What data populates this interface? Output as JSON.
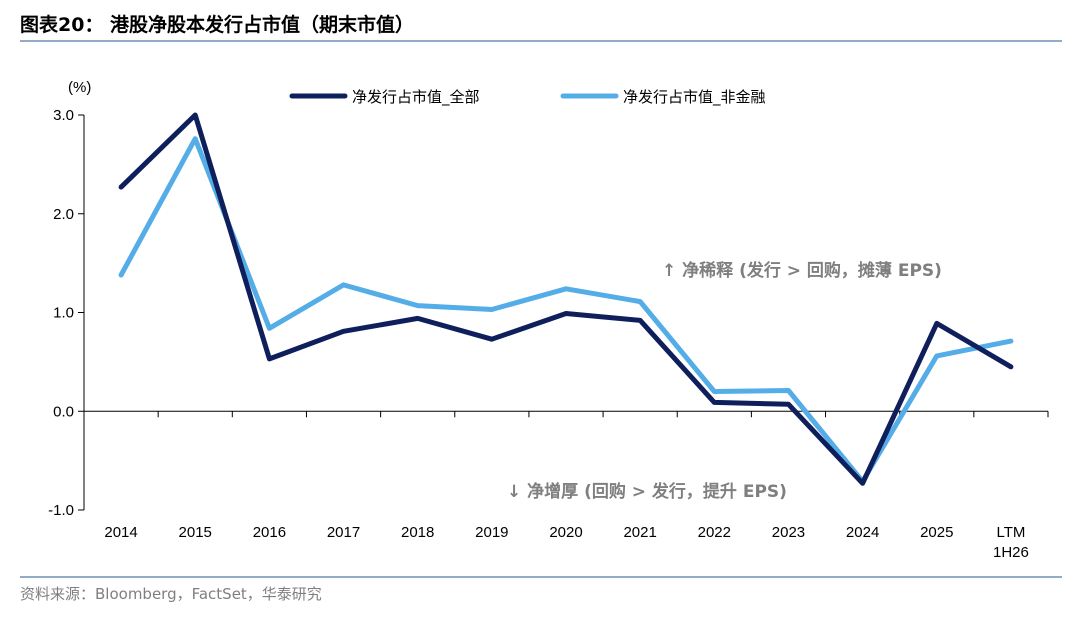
{
  "header": {
    "title": "图表20：  港股净股本发行占市值（期末市值）"
  },
  "footer": {
    "source": "资料来源：Bloomberg，FactSet，华泰研究"
  },
  "colors": {
    "series_all": "#0f1f5c",
    "series_nonfin": "#55ade8",
    "rule": "#6e8fb3",
    "annotation": "#7f7f7f"
  },
  "chart_data": {
    "type": "line",
    "unit_label": "(%)",
    "categories": [
      "2014",
      "2015",
      "2016",
      "2017",
      "2018",
      "2019",
      "2020",
      "2021",
      "2022",
      "2023",
      "2024",
      "2025",
      "LTM\n1H26"
    ],
    "ylim": [
      -1.0,
      3.0
    ],
    "yticks": [
      "3.0",
      "2.0",
      "1.0",
      "0.0",
      "-1.0"
    ],
    "ytick_values": [
      3.0,
      2.0,
      1.0,
      0.0,
      -1.0
    ],
    "legend_position": "top-center",
    "grid": false,
    "series": [
      {
        "name": "净发行占市值_全部",
        "color": "#0f1f5c",
        "values": [
          2.27,
          3.0,
          0.53,
          0.81,
          0.94,
          0.73,
          0.99,
          0.92,
          0.09,
          0.07,
          -0.73,
          0.89,
          0.45
        ]
      },
      {
        "name": "净发行占市值_非金融",
        "color": "#55ade8",
        "values": [
          1.38,
          2.76,
          0.84,
          1.28,
          1.07,
          1.03,
          1.24,
          1.11,
          0.2,
          0.21,
          -0.71,
          0.56,
          0.71
        ]
      }
    ],
    "annotations": [
      {
        "text": "↑ 净稀释 (发行 > 回购，摊薄 EPS)"
      },
      {
        "text": "↓ 净增厚 (回购 > 发行，提升 EPS)"
      }
    ]
  }
}
